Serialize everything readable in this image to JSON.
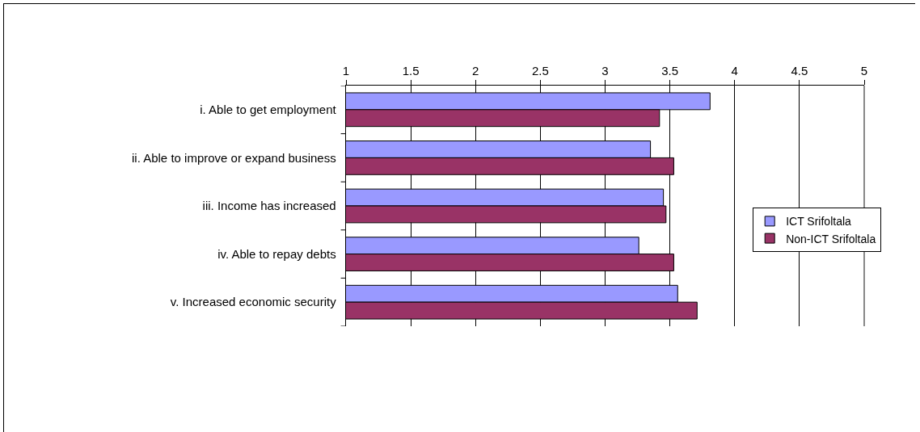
{
  "chart_data": {
    "type": "bar",
    "orientation": "horizontal",
    "categories": [
      "i. Able to get employment",
      "ii. Able to improve or expand business",
      "iii. Income has increased",
      "iv. Able to repay debts",
      "v. Increased economic security"
    ],
    "series": [
      {
        "name": "ICT Srifoltala",
        "color": "#9999ff",
        "values": [
          3.81,
          3.35,
          3.45,
          3.26,
          3.56
        ]
      },
      {
        "name": "Non-ICT Srifoltala",
        "color": "#993366",
        "values": [
          3.42,
          3.53,
          3.47,
          3.53,
          3.71
        ]
      }
    ],
    "xlim": [
      1,
      5
    ],
    "xticks": [
      1,
      1.5,
      2,
      2.5,
      3,
      3.5,
      4,
      4.5,
      5
    ],
    "grid": "x",
    "legend": "right"
  }
}
